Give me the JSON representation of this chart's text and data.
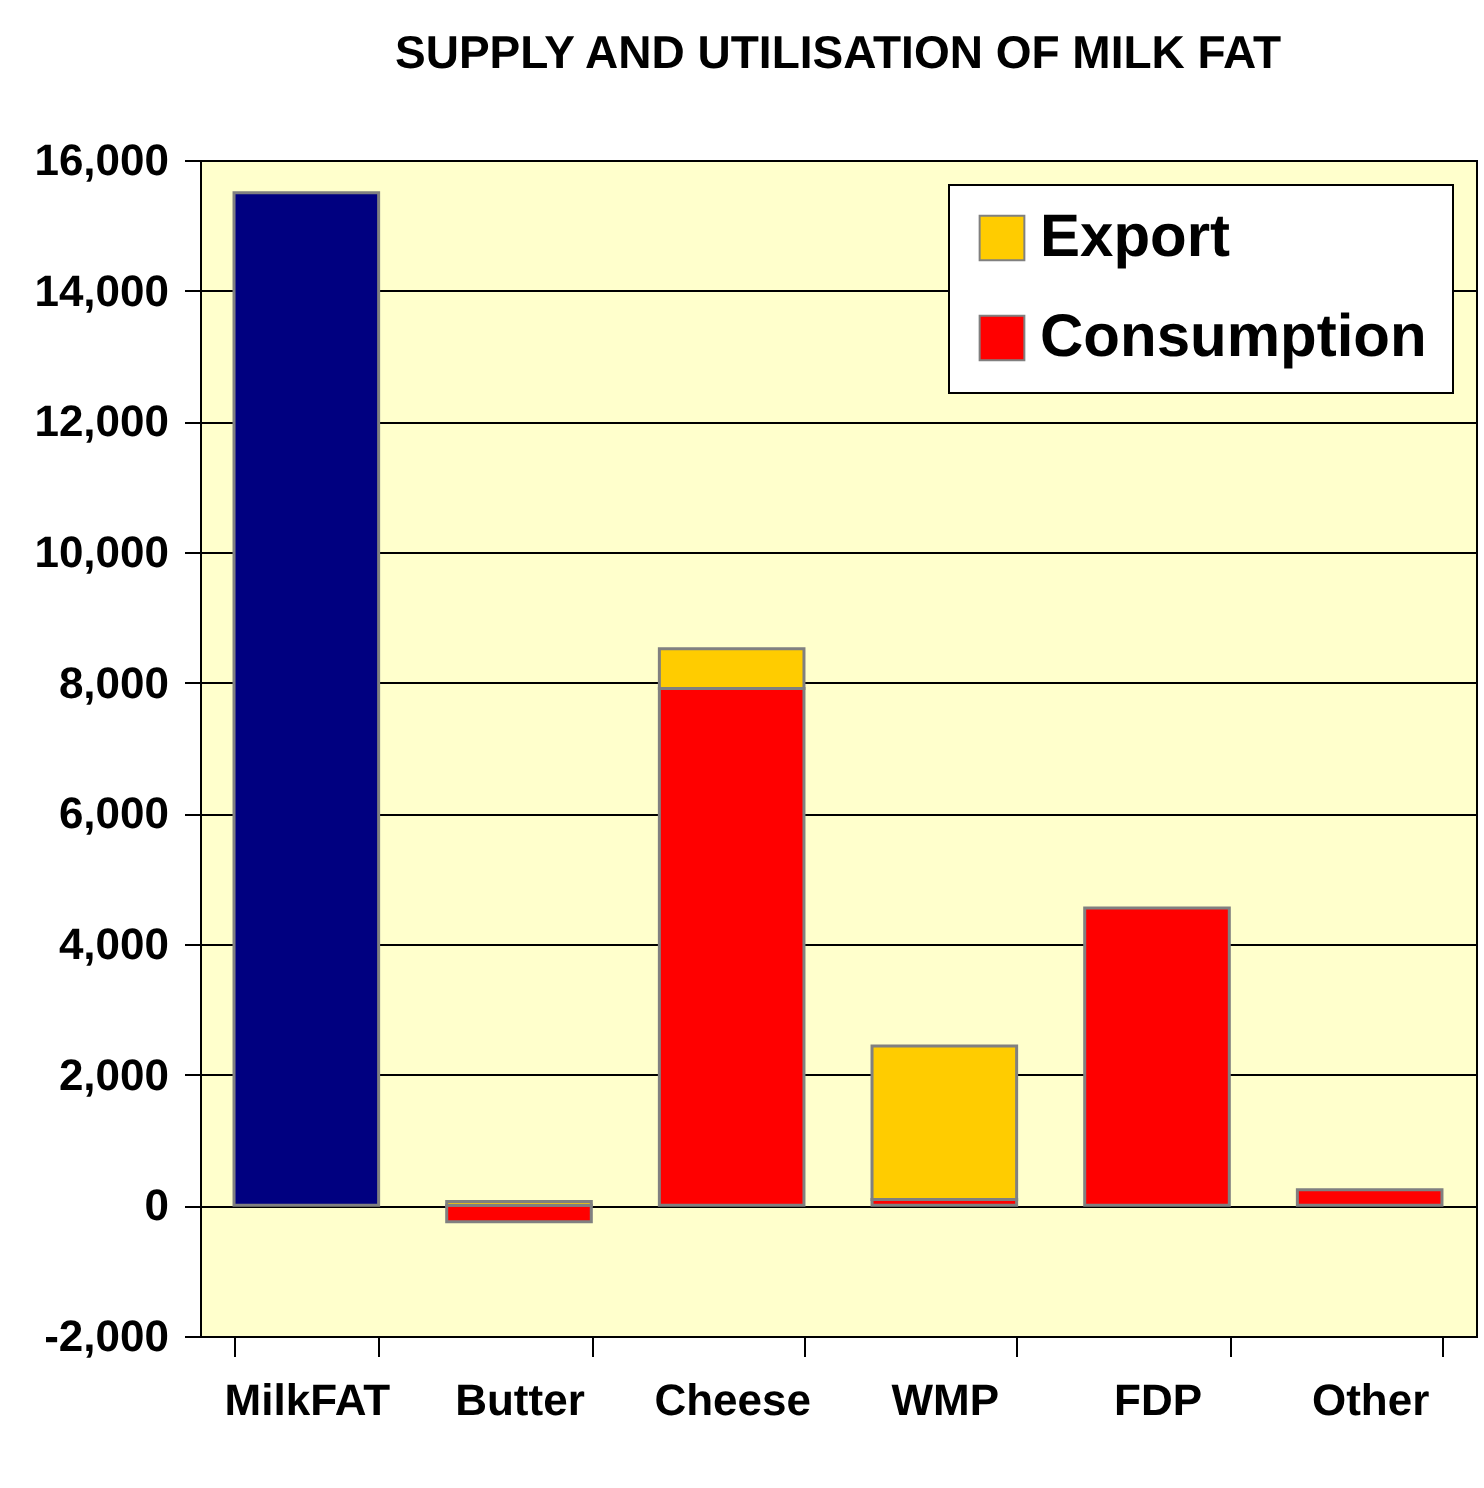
{
  "chart_data": {
    "type": "bar",
    "title": "SUPPLY AND UTILISATION OF MILK FAT",
    "categories": [
      "MilkFAT",
      "Butter",
      "Cheese",
      "WMP",
      "FDP",
      "Other"
    ],
    "stacked": true,
    "series": [
      {
        "color": "#000080",
        "values": [
          15500,
          null,
          null,
          null,
          null,
          null
        ]
      },
      {
        "name": "Consumption",
        "color": "#ff0000",
        "values": [
          null,
          -250,
          7910,
          90,
          4550,
          240
        ]
      },
      {
        "name": "Export",
        "color": "#ffcc00",
        "values": [
          null,
          60,
          610,
          2350,
          null,
          null
        ]
      }
    ],
    "ylim": [
      -2000,
      16000
    ],
    "yticks": [
      {
        "value": -2000,
        "label": "-2,000"
      },
      {
        "value": 0,
        "label": "0"
      },
      {
        "value": 2000,
        "label": "2,000"
      },
      {
        "value": 4000,
        "label": "4,000"
      },
      {
        "value": 6000,
        "label": "6,000"
      },
      {
        "value": 8000,
        "label": "8,000"
      },
      {
        "value": 10000,
        "label": "10,000"
      },
      {
        "value": 12000,
        "label": "12,000"
      },
      {
        "value": 14000,
        "label": "14,000"
      },
      {
        "value": 16000,
        "label": "16,000"
      }
    ],
    "grid": "y",
    "legend": "top right"
  }
}
